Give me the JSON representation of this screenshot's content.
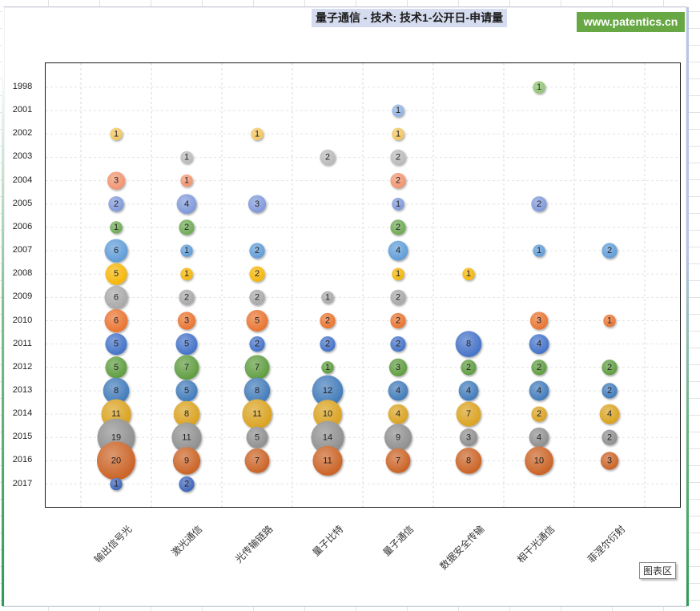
{
  "chart_area_label": "图表区",
  "watermark": "www.patentics.cn",
  "chart_data": {
    "type": "bubble",
    "title": "量子通信 - 技术: 技术1-公开日-申请量",
    "xlabel": "",
    "ylabel": "",
    "categories": [
      "输出信号光",
      "激光通信",
      "光传输链路",
      "量子比特",
      "量子通信",
      "数据安全传输",
      "相干光通信",
      "菲涅尔衍射"
    ],
    "years": [
      "1998",
      "2001",
      "2002",
      "2003",
      "2004",
      "2005",
      "2006",
      "2007",
      "2008",
      "2009",
      "2010",
      "2011",
      "2012",
      "2013",
      "2014",
      "2015",
      "2016",
      "2017"
    ],
    "year_colors": {
      "1998": "#8dc26f",
      "2001": "#8fb0e0",
      "2002": "#f2c45a",
      "2003": "#b8b8b8",
      "2004": "#f0916c",
      "2005": "#7c96d8",
      "2006": "#6aa84f",
      "2007": "#5c9ad6",
      "2008": "#f4b400",
      "2009": "#a6a6a6",
      "2010": "#e8702a",
      "2011": "#3f6fc6",
      "2012": "#5a9a3a",
      "2013": "#3d78b8",
      "2014": "#d9a01a",
      "2015": "#8c8c8c",
      "2016": "#c95f20",
      "2017": "#3a60b8"
    },
    "grid": true,
    "points": [
      {
        "category": "输出信号光",
        "year": "2002",
        "value": 1
      },
      {
        "category": "输出信号光",
        "year": "2004",
        "value": 3
      },
      {
        "category": "输出信号光",
        "year": "2005",
        "value": 2
      },
      {
        "category": "输出信号光",
        "year": "2006",
        "value": 1
      },
      {
        "category": "输出信号光",
        "year": "2007",
        "value": 6
      },
      {
        "category": "输出信号光",
        "year": "2008",
        "value": 5
      },
      {
        "category": "输出信号光",
        "year": "2009",
        "value": 6
      },
      {
        "category": "输出信号光",
        "year": "2010",
        "value": 6
      },
      {
        "category": "输出信号光",
        "year": "2011",
        "value": 5
      },
      {
        "category": "输出信号光",
        "year": "2012",
        "value": 5
      },
      {
        "category": "输出信号光",
        "year": "2013",
        "value": 8
      },
      {
        "category": "输出信号光",
        "year": "2014",
        "value": 11
      },
      {
        "category": "输出信号光",
        "year": "2015",
        "value": 19
      },
      {
        "category": "输出信号光",
        "year": "2016",
        "value": 20
      },
      {
        "category": "输出信号光",
        "year": "2017",
        "value": 1
      },
      {
        "category": "激光通信",
        "year": "2003",
        "value": 1
      },
      {
        "category": "激光通信",
        "year": "2004",
        "value": 1
      },
      {
        "category": "激光通信",
        "year": "2005",
        "value": 4
      },
      {
        "category": "激光通信",
        "year": "2006",
        "value": 2
      },
      {
        "category": "激光通信",
        "year": "2007",
        "value": 1
      },
      {
        "category": "激光通信",
        "year": "2008",
        "value": 1
      },
      {
        "category": "激光通信",
        "year": "2009",
        "value": 2
      },
      {
        "category": "激光通信",
        "year": "2010",
        "value": 3
      },
      {
        "category": "激光通信",
        "year": "2011",
        "value": 5
      },
      {
        "category": "激光通信",
        "year": "2012",
        "value": 7
      },
      {
        "category": "激光通信",
        "year": "2013",
        "value": 5
      },
      {
        "category": "激光通信",
        "year": "2014",
        "value": 8
      },
      {
        "category": "激光通信",
        "year": "2015",
        "value": 11
      },
      {
        "category": "激光通信",
        "year": "2016",
        "value": 9
      },
      {
        "category": "激光通信",
        "year": "2017",
        "value": 2
      },
      {
        "category": "光传输链路",
        "year": "2002",
        "value": 1
      },
      {
        "category": "光传输链路",
        "year": "2005",
        "value": 3
      },
      {
        "category": "光传输链路",
        "year": "2007",
        "value": 2
      },
      {
        "category": "光传输链路",
        "year": "2008",
        "value": 2
      },
      {
        "category": "光传输链路",
        "year": "2009",
        "value": 2
      },
      {
        "category": "光传输链路",
        "year": "2010",
        "value": 5
      },
      {
        "category": "光传输链路",
        "year": "2011",
        "value": 2
      },
      {
        "category": "光传输链路",
        "year": "2012",
        "value": 7
      },
      {
        "category": "光传输链路",
        "year": "2013",
        "value": 8
      },
      {
        "category": "光传输链路",
        "year": "2014",
        "value": 11
      },
      {
        "category": "光传输链路",
        "year": "2015",
        "value": 5
      },
      {
        "category": "光传输链路",
        "year": "2016",
        "value": 7
      },
      {
        "category": "量子比特",
        "year": "2003",
        "value": 2
      },
      {
        "category": "量子比特",
        "year": "2009",
        "value": 1
      },
      {
        "category": "量子比特",
        "year": "2010",
        "value": 2
      },
      {
        "category": "量子比特",
        "year": "2011",
        "value": 2
      },
      {
        "category": "量子比特",
        "year": "2012",
        "value": 1
      },
      {
        "category": "量子比特",
        "year": "2013",
        "value": 12
      },
      {
        "category": "量子比特",
        "year": "2014",
        "value": 10
      },
      {
        "category": "量子比特",
        "year": "2015",
        "value": 14
      },
      {
        "category": "量子比特",
        "year": "2016",
        "value": 11
      },
      {
        "category": "量子通信",
        "year": "2001",
        "value": 1
      },
      {
        "category": "量子通信",
        "year": "2002",
        "value": 1
      },
      {
        "category": "量子通信",
        "year": "2003",
        "value": 2
      },
      {
        "category": "量子通信",
        "year": "2004",
        "value": 2
      },
      {
        "category": "量子通信",
        "year": "2005",
        "value": 1
      },
      {
        "category": "量子通信",
        "year": "2006",
        "value": 2
      },
      {
        "category": "量子通信",
        "year": "2007",
        "value": 4
      },
      {
        "category": "量子通信",
        "year": "2008",
        "value": 1
      },
      {
        "category": "量子通信",
        "year": "2009",
        "value": 2
      },
      {
        "category": "量子通信",
        "year": "2010",
        "value": 2
      },
      {
        "category": "量子通信",
        "year": "2011",
        "value": 2
      },
      {
        "category": "量子通信",
        "year": "2012",
        "value": 3
      },
      {
        "category": "量子通信",
        "year": "2013",
        "value": 4
      },
      {
        "category": "量子通信",
        "year": "2014",
        "value": 4
      },
      {
        "category": "量子通信",
        "year": "2015",
        "value": 9
      },
      {
        "category": "量子通信",
        "year": "2016",
        "value": 7
      },
      {
        "category": "数据安全传输",
        "year": "2008",
        "value": 1
      },
      {
        "category": "数据安全传输",
        "year": "2011",
        "value": 8
      },
      {
        "category": "数据安全传输",
        "year": "2012",
        "value": 2
      },
      {
        "category": "数据安全传输",
        "year": "2013",
        "value": 4
      },
      {
        "category": "数据安全传输",
        "year": "2014",
        "value": 7
      },
      {
        "category": "数据安全传输",
        "year": "2015",
        "value": 3
      },
      {
        "category": "数据安全传输",
        "year": "2016",
        "value": 8
      },
      {
        "category": "相干光通信",
        "year": "1998",
        "value": 1
      },
      {
        "category": "相干光通信",
        "year": "2005",
        "value": 2
      },
      {
        "category": "相干光通信",
        "year": "2007",
        "value": 1
      },
      {
        "category": "相干光通信",
        "year": "2010",
        "value": 3
      },
      {
        "category": "相干光通信",
        "year": "2011",
        "value": 4
      },
      {
        "category": "相干光通信",
        "year": "2012",
        "value": 2
      },
      {
        "category": "相干光通信",
        "year": "2013",
        "value": 4
      },
      {
        "category": "相干光通信",
        "year": "2014",
        "value": 2
      },
      {
        "category": "相干光通信",
        "year": "2015",
        "value": 4
      },
      {
        "category": "相干光通信",
        "year": "2016",
        "value": 10
      },
      {
        "category": "菲涅尔衍射",
        "year": "2007",
        "value": 2
      },
      {
        "category": "菲涅尔衍射",
        "year": "2010",
        "value": 1
      },
      {
        "category": "菲涅尔衍射",
        "year": "2012",
        "value": 2
      },
      {
        "category": "菲涅尔衍射",
        "year": "2013",
        "value": 2
      },
      {
        "category": "菲涅尔衍射",
        "year": "2014",
        "value": 4
      },
      {
        "category": "菲涅尔衍射",
        "year": "2015",
        "value": 2
      },
      {
        "category": "菲涅尔衍射",
        "year": "2016",
        "value": 3
      }
    ]
  }
}
